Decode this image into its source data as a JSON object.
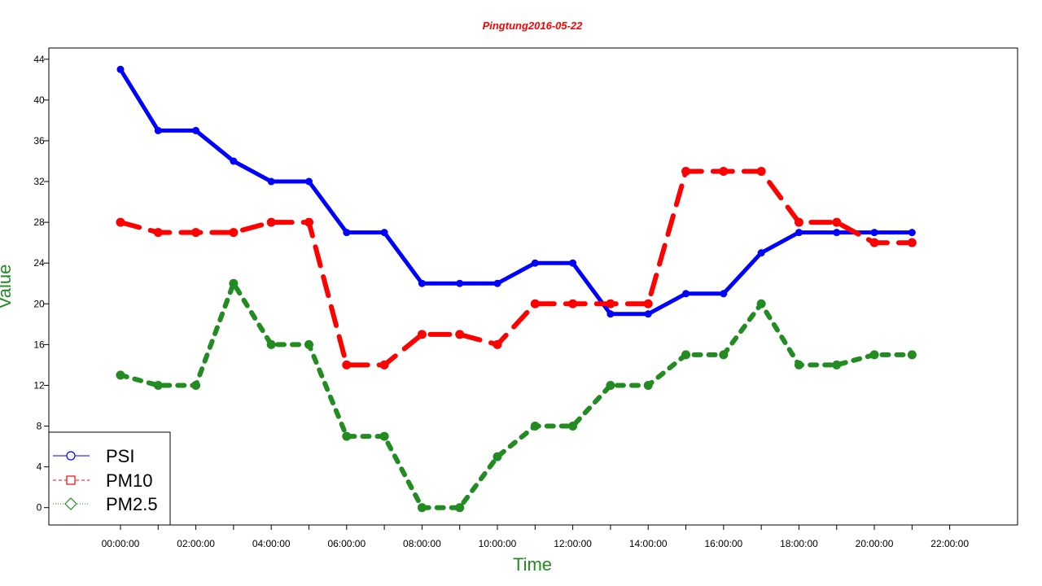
{
  "chart_data": {
    "type": "line",
    "title": "Pingtung2016-05-22",
    "xlabel": "Time",
    "ylabel": "Value",
    "x_ticks": [
      "00:00:00",
      "02:00:00",
      "04:00:00",
      "06:00:00",
      "08:00:00",
      "10:00:00",
      "12:00:00",
      "14:00:00",
      "16:00:00",
      "18:00:00",
      "20:00:00",
      "22:00:00"
    ],
    "y_ticks": [
      0,
      4,
      8,
      12,
      16,
      20,
      24,
      28,
      32,
      36,
      40,
      44
    ],
    "xlim_hours": [
      -1.9,
      23.8
    ],
    "ylim": [
      -1.7,
      45.1
    ],
    "grid": false,
    "legend_position": "bottom-left",
    "x_hours": [
      0,
      1,
      2,
      3,
      4,
      5,
      6,
      7,
      8,
      9,
      10,
      11,
      12,
      13,
      14,
      15,
      16,
      17,
      18,
      19,
      20,
      21
    ],
    "series": [
      {
        "name": "PSI",
        "color": "#0000ff",
        "dash": "solid",
        "marker": "circle",
        "values": [
          43,
          37,
          37,
          34,
          32,
          32,
          27,
          27,
          22,
          22,
          22,
          24,
          24,
          19,
          19,
          21,
          21,
          25,
          27,
          27,
          27,
          27
        ]
      },
      {
        "name": "PM10",
        "color": "#ff0000",
        "dash": "dashed",
        "marker": "square",
        "values": [
          28,
          27,
          27,
          27,
          28,
          28,
          14,
          14,
          17,
          17,
          16,
          20,
          20,
          20,
          20,
          33,
          33,
          33,
          28,
          28,
          26,
          26
        ]
      },
      {
        "name": "PM2.5",
        "color": "#228b22",
        "dash": "dotted",
        "marker": "diamond",
        "values": [
          13,
          12,
          12,
          22,
          16,
          16,
          7,
          7,
          0,
          0,
          5,
          8,
          8,
          12,
          12,
          15,
          15,
          20,
          14,
          14,
          15,
          15
        ]
      }
    ]
  }
}
